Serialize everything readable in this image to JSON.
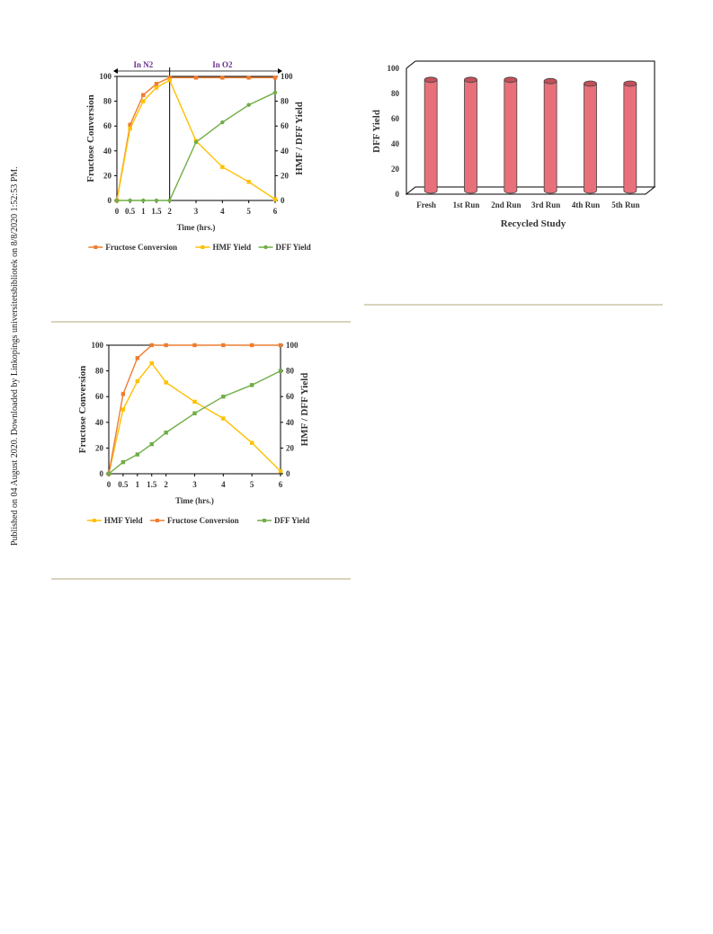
{
  "sidebar_note": "Published on 04 August 2020. Downloaded by Linkopings universitetsbibliotek on 8/8/2020 1:52:53 PM.",
  "chart_data": [
    {
      "type": "line",
      "x": [
        "0",
        "0.5",
        "1",
        "1.5",
        "2",
        "3",
        "4",
        "5",
        "6"
      ],
      "xlabel": "Time (hrs.)",
      "ylabel": "Fructose Conversion",
      "y2label": "HMF / DFF Yield",
      "ylim": [
        0,
        100
      ],
      "yticks": [
        "0",
        "20",
        "40",
        "60",
        "80",
        "100"
      ],
      "phases": [
        "In N2",
        "In O2"
      ],
      "series": [
        {
          "name": "Fructose Conversion",
          "color": "#ed7d31",
          "marker": "square",
          "values": [
            0,
            61,
            85,
            94,
            99,
            99,
            99,
            99,
            99
          ]
        },
        {
          "name": "HMF Yield",
          "color": "#ffc000",
          "marker": "square",
          "values": [
            0,
            58,
            80,
            91,
            97,
            48,
            27,
            15,
            1
          ]
        },
        {
          "name": "DFF Yield",
          "color": "#70ad47",
          "marker": "circle",
          "values": [
            0,
            0,
            0,
            0,
            0,
            47,
            63,
            77,
            87
          ]
        }
      ],
      "legend_order": [
        0,
        1,
        2
      ],
      "legend": "bottom"
    },
    {
      "type": "bar",
      "style": "3d-cylinder",
      "categories": [
        "Fresh",
        "1st Run",
        "2nd Run",
        "3rd Run",
        "4th Run",
        "5th Run"
      ],
      "values": [
        88,
        88,
        88,
        87,
        85,
        85
      ],
      "xlabel": "Recycled Study",
      "ylabel": "DFF Yield",
      "ylim": [
        0,
        100
      ],
      "yticks": [
        "0",
        "20",
        "40",
        "60",
        "80",
        "100"
      ],
      "color": "#e8707a"
    },
    {
      "type": "line",
      "x": [
        "0",
        "0.5",
        "1",
        "1.5",
        "2",
        "3",
        "4",
        "5",
        "6"
      ],
      "xlabel": "Time (hrs.)",
      "ylabel": "Fructose Conversion",
      "y2label": "HMF / DFF Yield",
      "ylim": [
        0,
        100
      ],
      "yticks": [
        "0",
        "20",
        "40",
        "60",
        "80",
        "100"
      ],
      "series": [
        {
          "name": "HMF Yield",
          "color": "#ffc000",
          "marker": "square",
          "values": [
            0,
            50,
            72,
            86,
            71,
            56,
            43,
            24,
            2
          ]
        },
        {
          "name": "Fructose Conversion",
          "color": "#ed7d31",
          "marker": "square",
          "values": [
            0,
            62,
            90,
            100,
            100,
            100,
            100,
            100,
            100
          ]
        },
        {
          "name": "DFF Yield",
          "color": "#70ad47",
          "marker": "square",
          "values": [
            0,
            9,
            15,
            23,
            32,
            47,
            60,
            69,
            80
          ]
        }
      ],
      "legend_order": [
        0,
        1,
        2
      ],
      "legend": "bottom"
    }
  ]
}
